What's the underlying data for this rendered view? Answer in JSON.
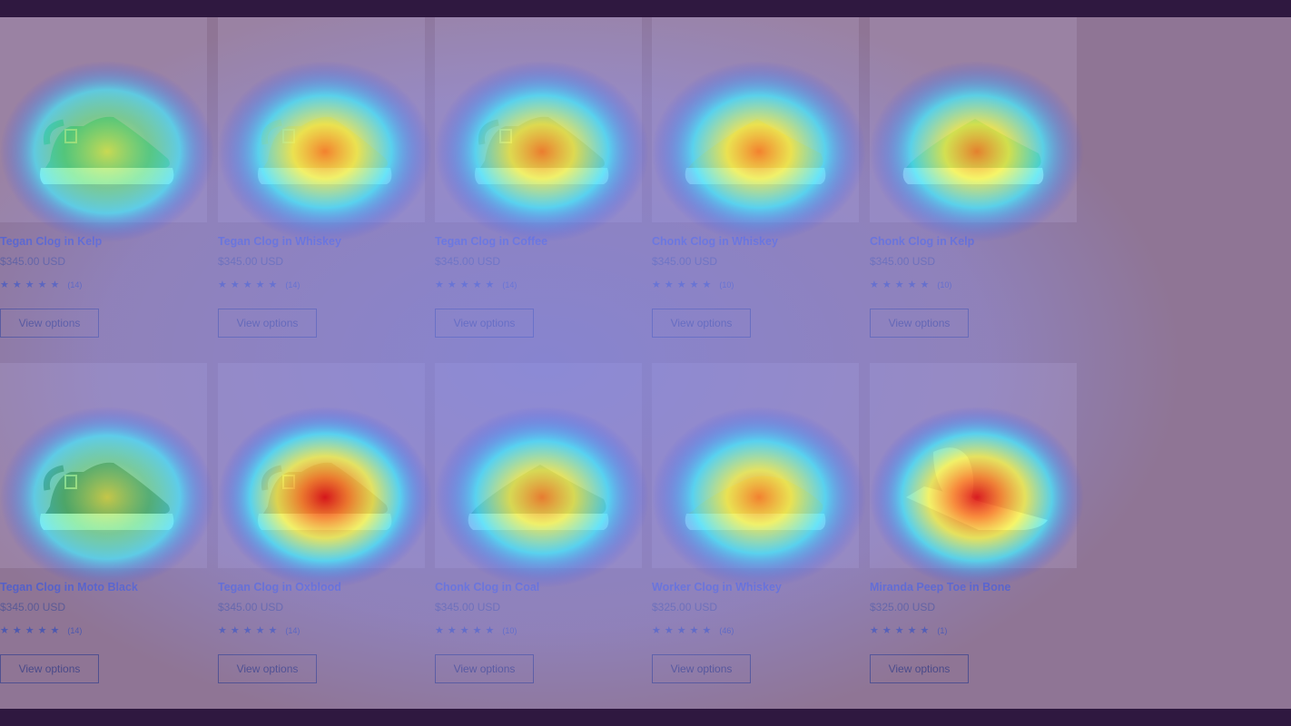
{
  "products": [
    {
      "title": "Tegan Clog in Kelp",
      "price": "$345.00 USD",
      "stars": "★★★★★",
      "reviews": "(14)",
      "button": "View options",
      "shoe": "tegan",
      "color": "#3e7d6a",
      "heat": 0.55
    },
    {
      "title": "Tegan Clog in Whiskey",
      "price": "$345.00 USD",
      "stars": "★★★★★",
      "reviews": "(14)",
      "button": "View options",
      "shoe": "tegan",
      "color": "#c0803a",
      "heat": 0.85
    },
    {
      "title": "Tegan Clog in Coffee",
      "price": "$345.00 USD",
      "stars": "★★★★★",
      "reviews": "(14)",
      "button": "View options",
      "shoe": "tegan",
      "color": "#6b4a34",
      "heat": 0.8
    },
    {
      "title": "Chonk Clog in Whiskey",
      "price": "$345.00 USD",
      "stars": "★★★★★",
      "reviews": "(10)",
      "button": "View options",
      "shoe": "chonk",
      "color": "#c0803a",
      "heat": 0.72
    },
    {
      "title": "Chonk Clog in Kelp",
      "price": "$345.00 USD",
      "stars": "★★★★★",
      "reviews": "(10)",
      "button": "View options",
      "shoe": "chonk",
      "color": "#3e7d6a",
      "heat": 0.9
    },
    {
      "title": "Tegan Clog in Moto Black",
      "price": "$345.00 USD",
      "stars": "★★★★★",
      "reviews": "(14)",
      "button": "View options",
      "shoe": "tegan",
      "color": "#222222",
      "heat": 0.6
    },
    {
      "title": "Tegan Clog in Oxblood",
      "price": "$345.00 USD",
      "stars": "★★★★★",
      "reviews": "(14)",
      "button": "View options",
      "shoe": "tegan",
      "color": "#6a1f2a",
      "heat": 1.0
    },
    {
      "title": "Chonk Clog in Coal",
      "price": "$345.00 USD",
      "stars": "★★★★★",
      "reviews": "(10)",
      "button": "View options",
      "shoe": "chonk",
      "color": "#3a3a3a",
      "heat": 0.82
    },
    {
      "title": "Worker Clog in Whiskey",
      "price": "$325.00 USD",
      "stars": "★★★★★",
      "reviews": "(46)",
      "button": "View options",
      "shoe": "worker",
      "color": "#c0803a",
      "heat": 0.85
    },
    {
      "title": "Miranda Peep Toe in Bone",
      "price": "$325.00 USD",
      "stars": "★★★★★",
      "reviews": "(1)",
      "button": "View options",
      "shoe": "miranda",
      "color": "#e6ddd0",
      "heat": 0.95
    }
  ],
  "overlay": {
    "type": "attention-heatmap",
    "palette": [
      "#3040ff",
      "#40f0ff",
      "#ffff40",
      "#ff8020",
      "#e01010"
    ]
  }
}
